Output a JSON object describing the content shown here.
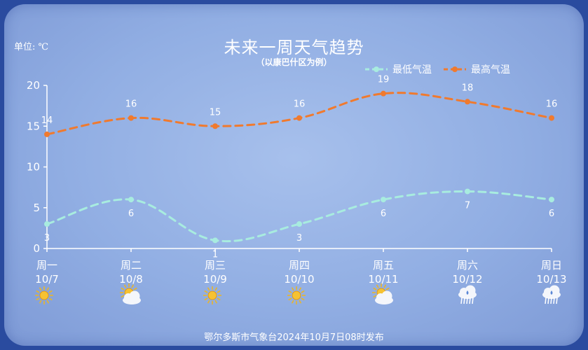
{
  "unit_label": "单位: ℃",
  "title": "未来一周天气趋势",
  "subtitle": "（以康巴什区为例）",
  "footer": "鄂尔多斯市气象台2024年10月7日08时发布",
  "colors": {
    "min_series": "#a8ecdf",
    "max_series": "#f07a2e",
    "text": "#ffffff"
  },
  "chart_data": {
    "type": "line",
    "categories": [
      "周一",
      "周二",
      "周三",
      "周四",
      "周五",
      "周六",
      "周日"
    ],
    "dates": [
      "10/7",
      "10/8",
      "10/9",
      "10/10",
      "10/11",
      "10/12",
      "10/13"
    ],
    "weather_icons": [
      "sunny-icon",
      "partly-cloudy-icon",
      "sunny-icon",
      "sunny-icon",
      "partly-cloudy-icon",
      "rain-icon",
      "rain-icon"
    ],
    "series": [
      {
        "name": "最低气温",
        "values": [
          3,
          6,
          1,
          3,
          6,
          7,
          6
        ],
        "color": "#a8ecdf"
      },
      {
        "name": "最高气温",
        "values": [
          14,
          16,
          15,
          16,
          19,
          18,
          16
        ],
        "color": "#f07a2e"
      }
    ],
    "ylim": [
      0,
      20
    ],
    "yticks": [
      0,
      5,
      10,
      15,
      20
    ],
    "line_style": "dashed-smooth",
    "grid": false,
    "legend_position": "top-right"
  }
}
